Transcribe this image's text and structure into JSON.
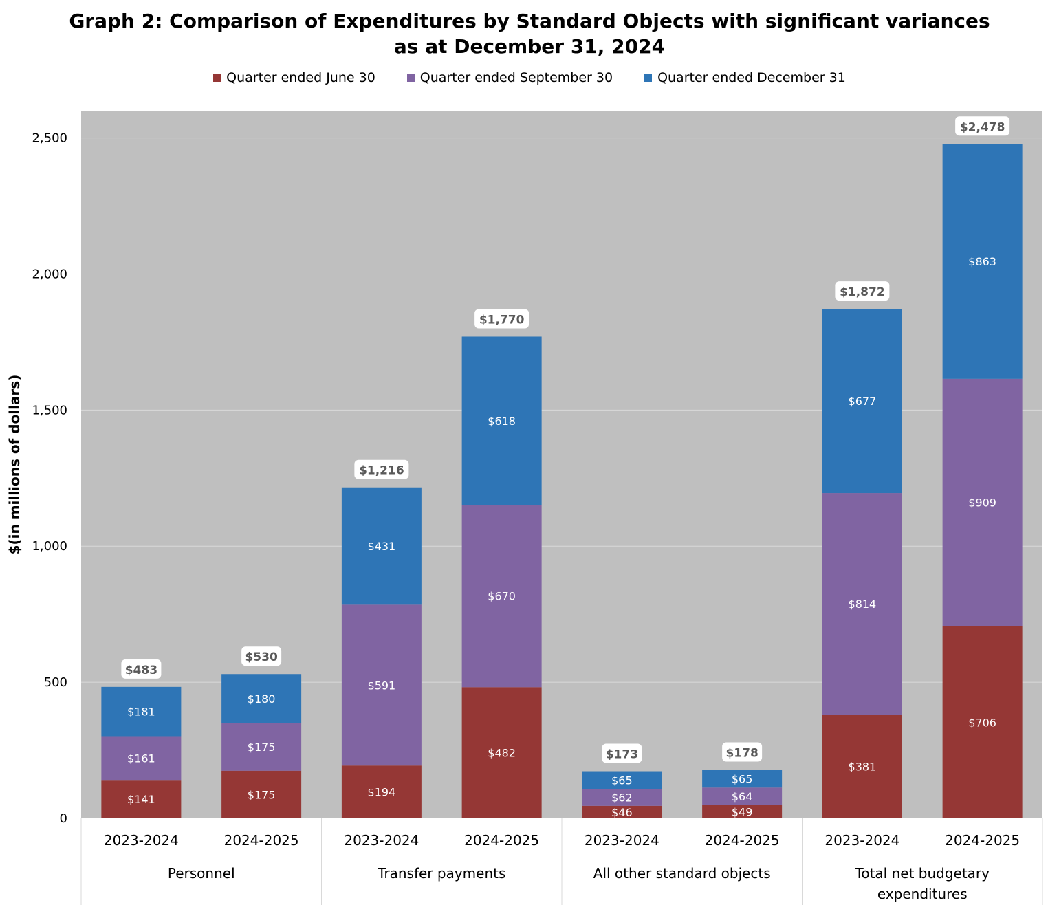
{
  "chart_data": {
    "type": "bar",
    "stacked": true,
    "title": "Graph 2: Comparison of Expenditures by Standard Objects with significant variances",
    "subtitle": "as at December 31, 2024",
    "ylabel": "$(in millions of dollars)",
    "xlabel": "",
    "ylim": [
      0,
      2600
    ],
    "yticks": [
      0,
      500,
      1000,
      1500,
      2000,
      2500
    ],
    "ytick_labels": [
      "0",
      "500",
      "1,000",
      "1,500",
      "2,000",
      "2,500"
    ],
    "grid": true,
    "legend_position": "top-center",
    "groups": [
      "Personnel",
      "Transfer payments",
      "All other standard objects",
      "Total net budgetary expenditures"
    ],
    "categories": [
      "2023-2024",
      "2024-2025",
      "2023-2024",
      "2024-2025",
      "2023-2024",
      "2024-2025",
      "2023-2024",
      "2024-2025"
    ],
    "series": [
      {
        "name": "Quarter ended June 30",
        "color": "#953735",
        "values": [
          141,
          175,
          194,
          482,
          46,
          49,
          381,
          706
        ],
        "labels": [
          "$141",
          "$175",
          "$194",
          "$482",
          "$46",
          "$49",
          "$381",
          "$706"
        ]
      },
      {
        "name": "Quarter ended September 30",
        "color": "#8064a2",
        "values": [
          161,
          175,
          591,
          670,
          62,
          64,
          814,
          909
        ],
        "labels": [
          "$161",
          "$175",
          "$591",
          "$670",
          "$62",
          "$64",
          "$814",
          "$909"
        ]
      },
      {
        "name": "Quarter ended December 31",
        "color": "#2e75b6",
        "values": [
          181,
          180,
          431,
          618,
          65,
          65,
          677,
          863
        ],
        "labels": [
          "$181",
          "$180",
          "$431",
          "$618",
          "$65",
          "$65",
          "$677",
          "$863"
        ]
      }
    ],
    "totals": [
      483,
      530,
      1216,
      1770,
      173,
      178,
      1872,
      2478
    ],
    "total_labels": [
      "$483",
      "$530",
      "$1,216",
      "$1,770",
      "$173",
      "$178",
      "$1,872",
      "$2,478"
    ]
  }
}
